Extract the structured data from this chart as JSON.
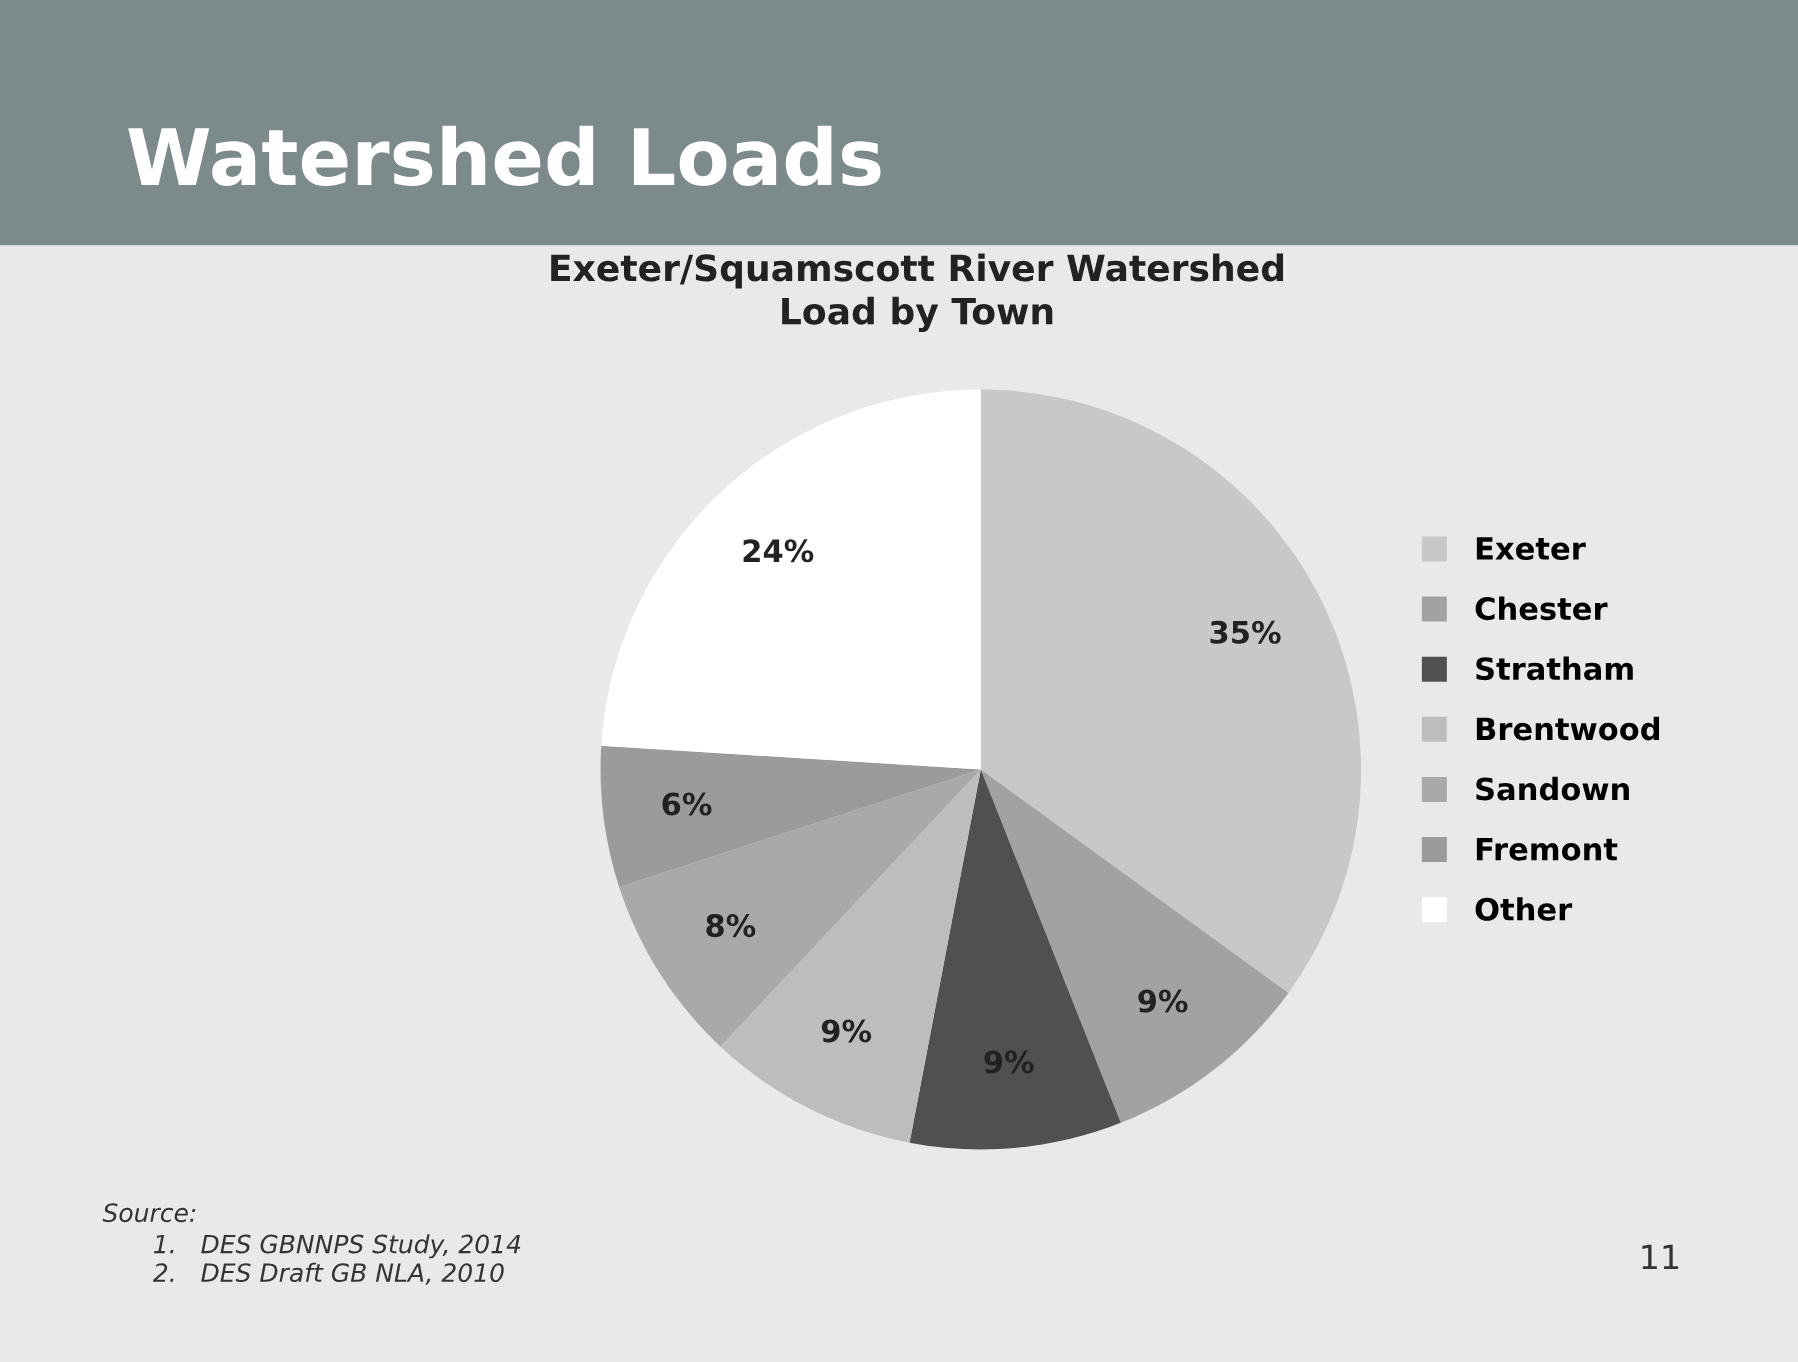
{
  "chart_data": {
    "type": "pie",
    "title": "Watershed Loads",
    "subtitle": "Exeter/Squamscott River Watershed\nLoad by Town",
    "categories": [
      "Exeter",
      "Chester",
      "Stratham",
      "Brentwood",
      "Sandown",
      "Fremont",
      "Other"
    ],
    "values": [
      35,
      9,
      9,
      9,
      8,
      6,
      24
    ],
    "value_labels": [
      "35%",
      "9%",
      "9%",
      "9%",
      "8%",
      "6%",
      "24%"
    ],
    "colors": [
      "#c8c8c8",
      "#a2a2a2",
      "#505050",
      "#bdbdbd",
      "#a9a9a9",
      "#9b9b9b",
      "#ffffff"
    ],
    "legend": "right",
    "annotations": [
      "Source:",
      "1.   DES GBNNPS Study, 2014",
      "2.   DES Draft GB NLA, 2010",
      "11"
    ]
  }
}
